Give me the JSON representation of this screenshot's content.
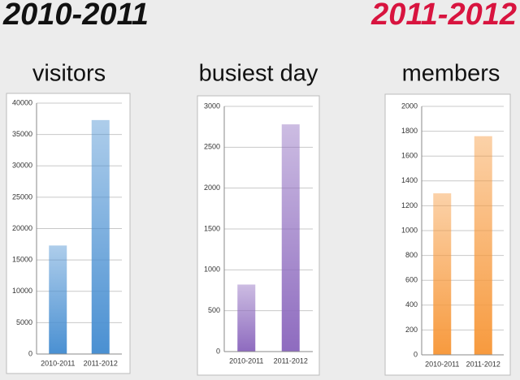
{
  "header": {
    "left": "2010-2011",
    "right": "2011-2012"
  },
  "chart_data": [
    {
      "type": "bar",
      "title": "visitors",
      "categories": [
        "2010-2011",
        "2011-2012"
      ],
      "values": [
        17300,
        37300
      ],
      "color": "#4a90d2",
      "ylim": [
        0,
        40000
      ],
      "yticks": [
        0,
        5000,
        10000,
        15000,
        20000,
        25000,
        30000,
        35000,
        40000
      ],
      "grid": true
    },
    {
      "type": "bar",
      "title": "busiest day",
      "categories": [
        "2010-2011",
        "2011-2012"
      ],
      "values": [
        820,
        2780
      ],
      "color": "#8e6bbf",
      "ylim": [
        0,
        3000
      ],
      "yticks": [
        0,
        500,
        1000,
        1500,
        2000,
        2500,
        3000
      ],
      "grid": true
    },
    {
      "type": "bar",
      "title": "members",
      "categories": [
        "2010-2011",
        "2011-2012"
      ],
      "values": [
        1300,
        1760
      ],
      "color": "#f79a3e",
      "ylim": [
        0,
        2000
      ],
      "yticks": [
        0,
        200,
        400,
        600,
        800,
        1000,
        1200,
        1400,
        1600,
        1800,
        2000
      ],
      "grid": true
    }
  ]
}
